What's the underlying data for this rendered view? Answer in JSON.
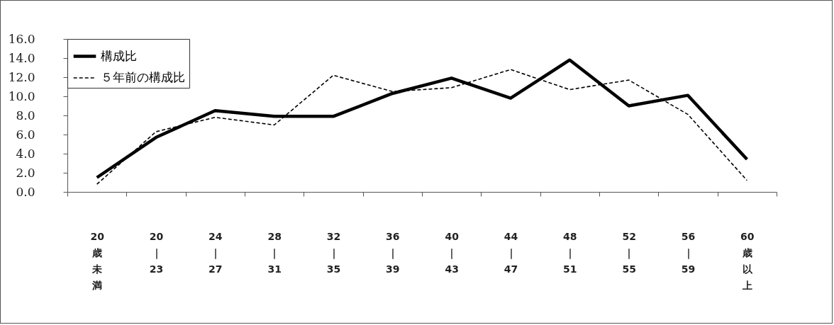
{
  "chart_data": {
    "type": "line",
    "categories": [
      "20歳未満",
      "20｜23",
      "24｜27",
      "28｜31",
      "32｜35",
      "36｜39",
      "40｜43",
      "44｜47",
      "48｜51",
      "52｜55",
      "56｜59",
      "60歳以上"
    ],
    "series": [
      {
        "name": "構成比",
        "color": "#000000",
        "line_style": "solid",
        "values": [
          1.5,
          5.7,
          8.5,
          7.9,
          7.9,
          10.3,
          11.9,
          9.8,
          13.8,
          9.0,
          10.1,
          3.4
        ]
      },
      {
        "name": "５年前の構成比",
        "color": "#000000",
        "line_style": "dashed",
        "values": [
          0.8,
          6.3,
          7.8,
          7.0,
          12.2,
          10.5,
          10.9,
          12.8,
          10.7,
          11.7,
          8.1,
          1.2
        ]
      }
    ],
    "ylim": [
      0,
      16
    ],
    "yticks": [
      {
        "value": 0,
        "label": "0.0"
      },
      {
        "value": 2,
        "label": "2.0"
      },
      {
        "value": 4,
        "label": "4.0"
      },
      {
        "value": 6,
        "label": "6.0"
      },
      {
        "value": 8,
        "label": "8.0"
      },
      {
        "value": 10,
        "label": "10.0"
      },
      {
        "value": 12,
        "label": "12.0"
      },
      {
        "value": 14,
        "label": "14.0"
      },
      {
        "value": 16,
        "label": "16.0"
      }
    ],
    "grid": false,
    "legend": "top left",
    "marker": "none"
  }
}
